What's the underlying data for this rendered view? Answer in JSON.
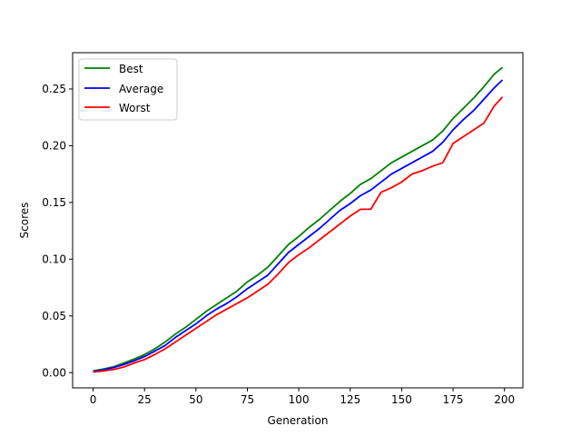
{
  "chart_data": {
    "type": "line",
    "title": "",
    "xlabel": "Generation",
    "ylabel": "Scores",
    "xlim": [
      -9.95,
      208.95
    ],
    "ylim": [
      -0.0134,
      0.282
    ],
    "xticks": [
      0,
      25,
      50,
      75,
      100,
      125,
      150,
      175,
      200
    ],
    "yticks": [
      0.0,
      0.05,
      0.1,
      0.15,
      0.2,
      0.25
    ],
    "ytick_labels": [
      "0.00",
      "0.05",
      "0.10",
      "0.15",
      "0.20",
      "0.25"
    ],
    "grid": false,
    "legend_position": "top-left",
    "series": [
      {
        "name": "Best",
        "color": "#008000",
        "x": [
          0,
          5,
          10,
          15,
          20,
          25,
          30,
          35,
          40,
          45,
          50,
          55,
          60,
          65,
          70,
          75,
          80,
          85,
          90,
          95,
          100,
          105,
          110,
          115,
          120,
          125,
          130,
          135,
          140,
          145,
          150,
          155,
          160,
          165,
          170,
          175,
          180,
          185,
          190,
          195,
          199
        ],
        "y": [
          0.0015,
          0.0032,
          0.0052,
          0.0085,
          0.012,
          0.016,
          0.021,
          0.027,
          0.034,
          0.04,
          0.047,
          0.054,
          0.06,
          0.066,
          0.072,
          0.08,
          0.086,
          0.093,
          0.103,
          0.113,
          0.12,
          0.128,
          0.135,
          0.143,
          0.151,
          0.158,
          0.166,
          0.171,
          0.178,
          0.185,
          0.19,
          0.195,
          0.2,
          0.205,
          0.213,
          0.224,
          0.233,
          0.242,
          0.252,
          0.263,
          0.269
        ]
      },
      {
        "name": "Average",
        "color": "#0000ff",
        "x": [
          0,
          5,
          10,
          15,
          20,
          25,
          30,
          35,
          40,
          45,
          50,
          55,
          60,
          65,
          70,
          75,
          80,
          85,
          90,
          95,
          100,
          105,
          110,
          115,
          120,
          125,
          130,
          135,
          140,
          145,
          150,
          155,
          160,
          165,
          170,
          175,
          180,
          185,
          190,
          195,
          199
        ],
        "y": [
          0.001,
          0.0025,
          0.0045,
          0.0072,
          0.0105,
          0.0142,
          0.019,
          0.024,
          0.031,
          0.037,
          0.043,
          0.05,
          0.056,
          0.061,
          0.067,
          0.074,
          0.08,
          0.086,
          0.096,
          0.106,
          0.113,
          0.12,
          0.127,
          0.135,
          0.143,
          0.149,
          0.156,
          0.161,
          0.168,
          0.175,
          0.18,
          0.185,
          0.19,
          0.195,
          0.203,
          0.214,
          0.223,
          0.231,
          0.241,
          0.251,
          0.258
        ]
      },
      {
        "name": "Worst",
        "color": "#ff0000",
        "x": [
          0,
          5,
          10,
          15,
          20,
          25,
          30,
          35,
          40,
          45,
          50,
          55,
          60,
          65,
          70,
          75,
          80,
          85,
          90,
          95,
          100,
          105,
          110,
          115,
          120,
          125,
          130,
          135,
          140,
          145,
          150,
          155,
          160,
          165,
          170,
          175,
          180,
          185,
          190,
          195,
          199
        ],
        "y": [
          0.0005,
          0.0015,
          0.0028,
          0.005,
          0.0085,
          0.0115,
          0.016,
          0.021,
          0.027,
          0.033,
          0.039,
          0.045,
          0.051,
          0.056,
          0.061,
          0.066,
          0.072,
          0.078,
          0.087,
          0.097,
          0.104,
          0.11,
          0.117,
          0.124,
          0.131,
          0.138,
          0.144,
          0.144,
          0.159,
          0.163,
          0.168,
          0.175,
          0.178,
          0.182,
          0.185,
          0.202,
          0.208,
          0.214,
          0.22,
          0.235,
          0.243
        ]
      }
    ]
  }
}
